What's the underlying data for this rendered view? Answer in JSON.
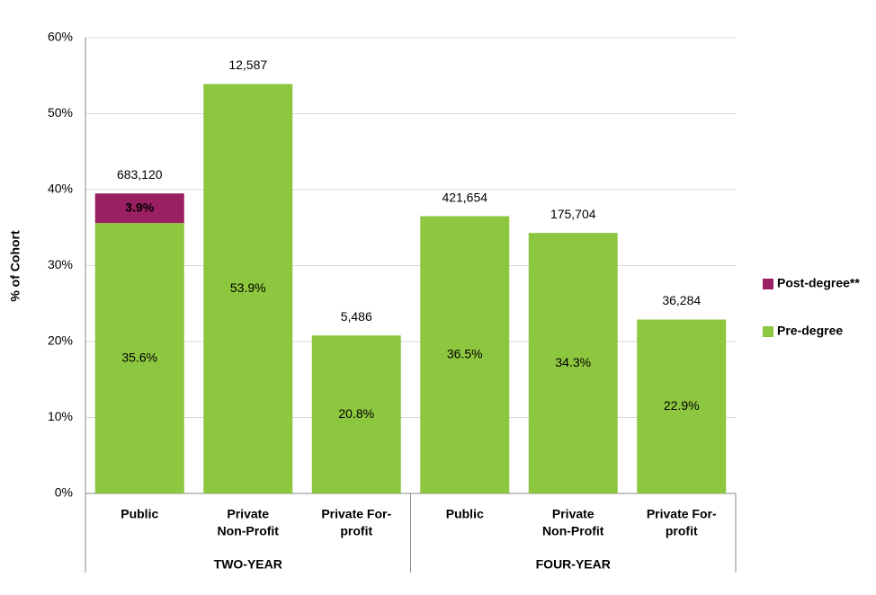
{
  "chart_data": {
    "type": "stacked-bar",
    "y_label": "% of Cohort",
    "categories": [
      [
        "Public"
      ],
      [
        "Private",
        "Non-Profit"
      ],
      [
        "Private For-",
        "profit"
      ],
      [
        "Public"
      ],
      [
        "Private",
        "Non-Profit"
      ],
      [
        "Private For-",
        "profit"
      ]
    ],
    "groups": [
      "TWO-YEAR",
      "FOUR-YEAR"
    ],
    "series": [
      {
        "name": "Pre-degree",
        "color": "#8dc63f",
        "values": [
          35.6,
          53.9,
          20.8,
          36.5,
          34.3,
          22.9
        ],
        "value_labels": [
          "35.6%",
          "53.9%",
          "20.8%",
          "36.5%",
          "34.3%",
          "22.9%"
        ]
      },
      {
        "name": "Post-degree**",
        "color": "#9b1f63",
        "values": [
          3.9,
          null,
          null,
          null,
          null,
          null
        ],
        "value_labels": [
          "3.9%",
          null,
          null,
          null,
          null,
          null
        ]
      }
    ],
    "cohort_sizes": [
      "683,120",
      "12,587",
      "5,486",
      "421,654",
      "175,704",
      "36,284"
    ],
    "ylim": [
      0,
      60
    ],
    "yticks": [
      {
        "value": 0,
        "label": "0%"
      },
      {
        "value": 10,
        "label": "10%"
      },
      {
        "value": 20,
        "label": "20%"
      },
      {
        "value": 30,
        "label": "30%"
      },
      {
        "value": 40,
        "label": "40%"
      },
      {
        "value": 50,
        "label": "50%"
      },
      {
        "value": 60,
        "label": "60%"
      }
    ],
    "grid": true,
    "legend": "right"
  }
}
